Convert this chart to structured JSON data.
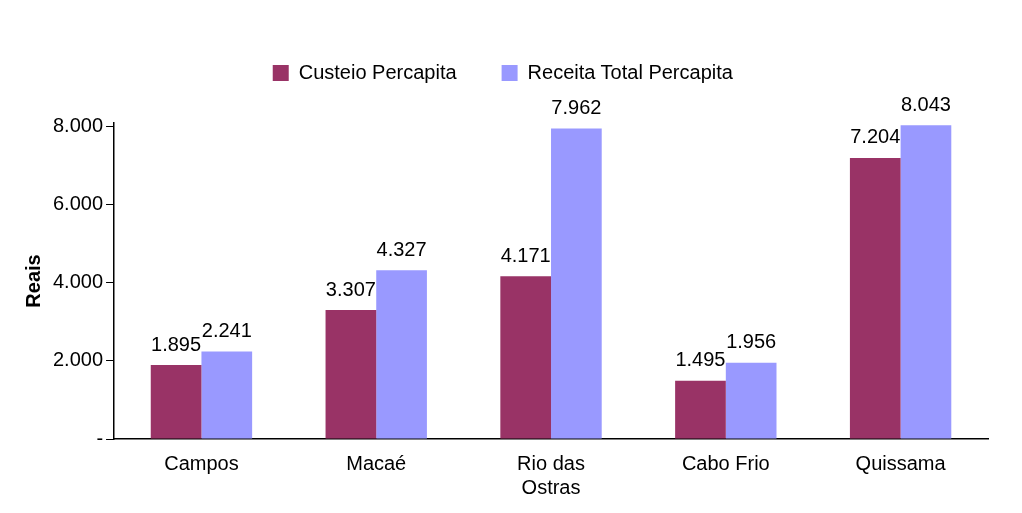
{
  "chart_data": {
    "type": "bar",
    "ylabel": "Reais",
    "categories": [
      "Campos",
      "Macaé",
      "Rio das Ostras",
      "Cabo Frio",
      "Quissama"
    ],
    "series": [
      {
        "name": "Custeio Percapita",
        "color": "#993366",
        "values": [
          1895,
          3307,
          4171,
          1495,
          7204
        ],
        "value_labels": [
          "1.895",
          "3.307",
          "4.171",
          "1.495",
          "7.204"
        ]
      },
      {
        "name": "Receita Total Percapita",
        "color": "#9999ff",
        "values": [
          2241,
          4327,
          7962,
          1956,
          8043
        ],
        "value_labels": [
          "2.241",
          "4.327",
          "7.962",
          "1.956",
          "8.043"
        ]
      }
    ],
    "ylim": [
      0,
      8100
    ],
    "yticks": [
      {
        "value": 0,
        "label": "-"
      },
      {
        "value": 2000,
        "label": "2.000"
      },
      {
        "value": 4000,
        "label": "4.000"
      },
      {
        "value": 6000,
        "label": "6.000"
      },
      {
        "value": 8000,
        "label": "8.000"
      }
    ],
    "grid": false,
    "legend": "top"
  }
}
